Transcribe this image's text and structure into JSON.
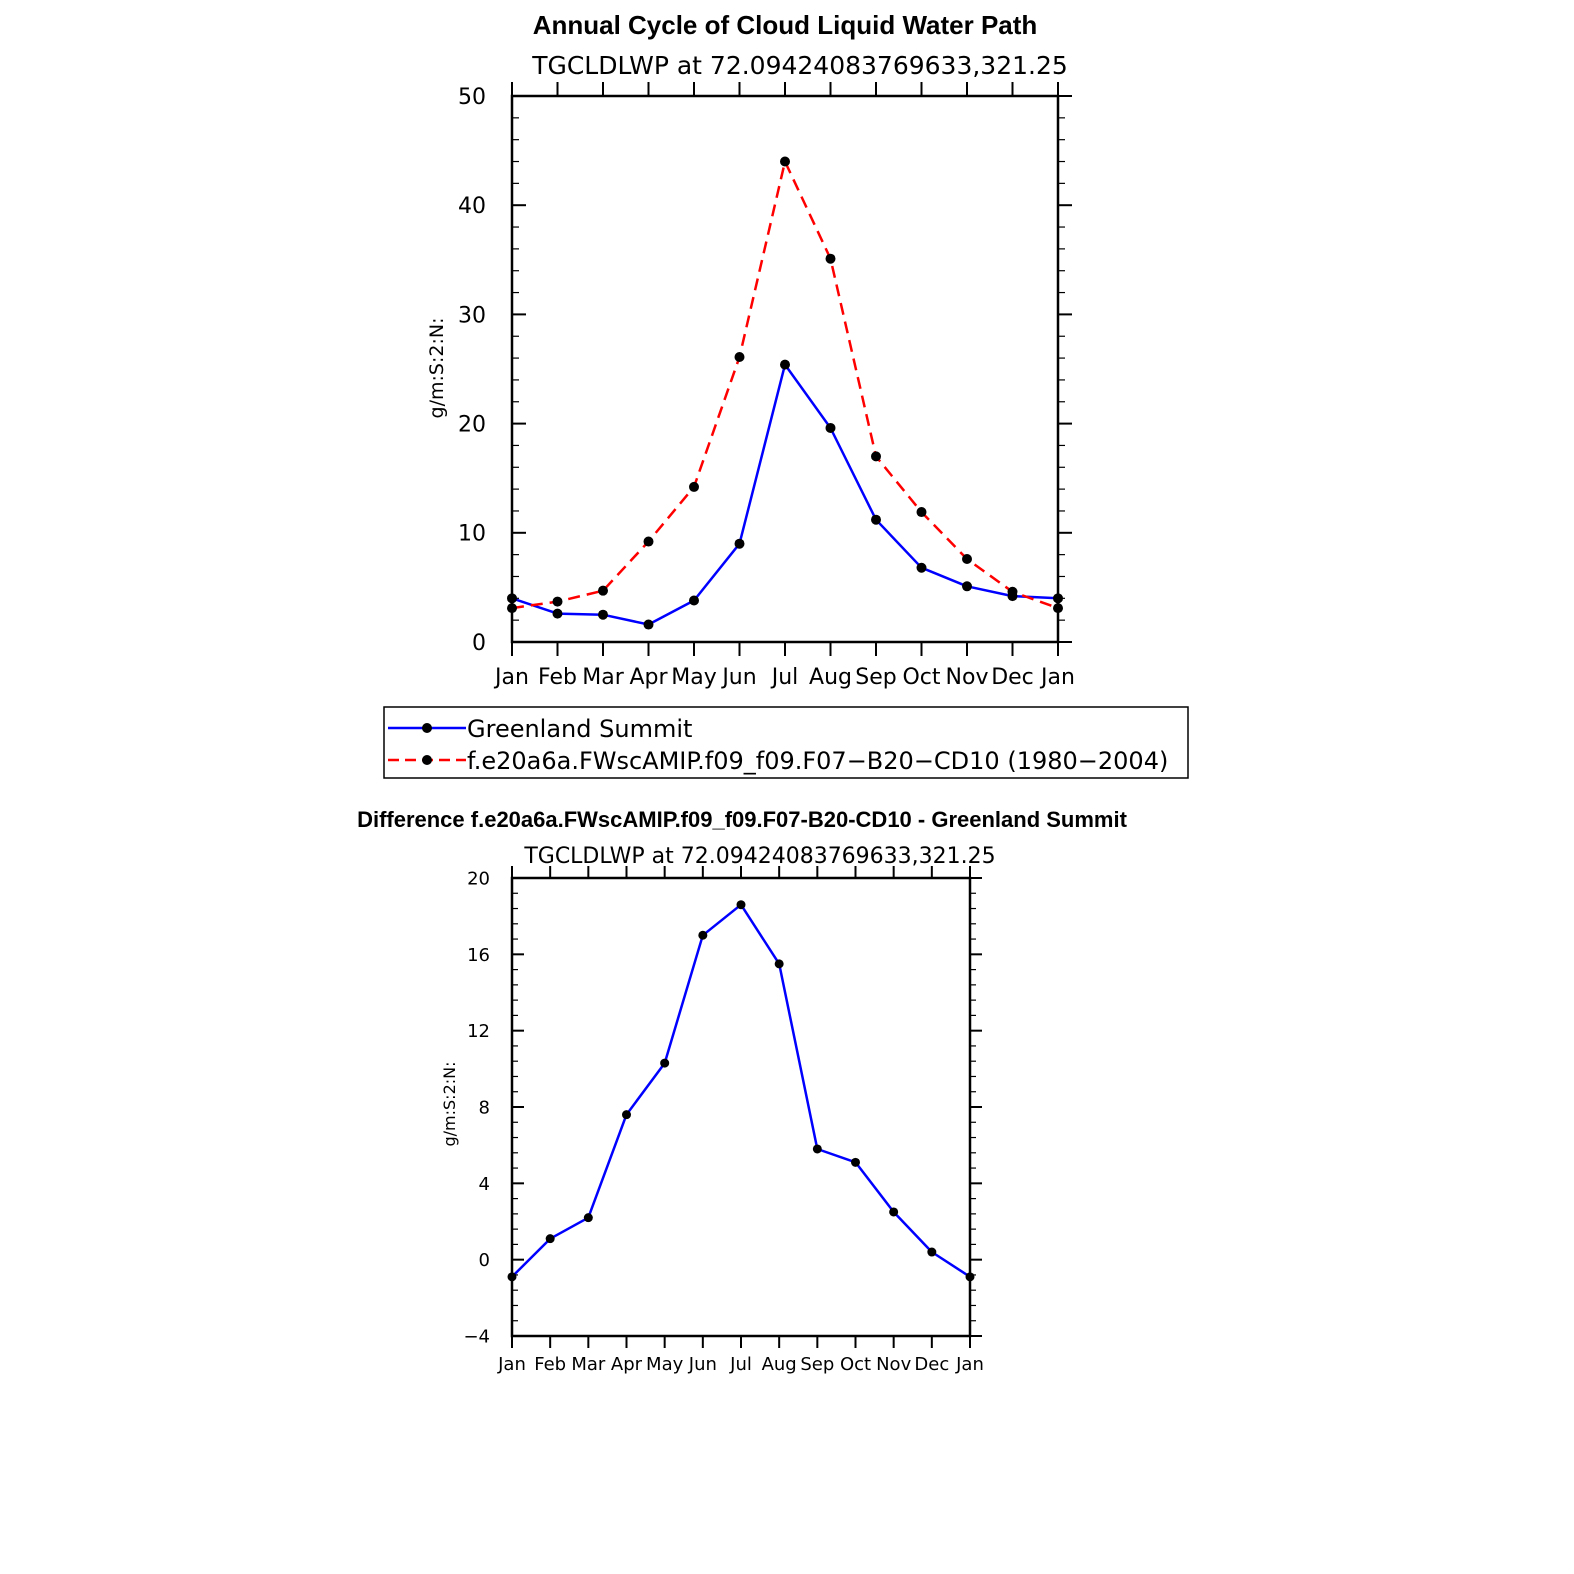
{
  "chart_data": [
    {
      "type": "line",
      "title": "Annual Cycle of Cloud Liquid Water Path",
      "subtitle": "TGCLDLWP at 72.09424083769633,321.25",
      "ylabel": "g/m:S:2:N:",
      "xlabel": "",
      "categories": [
        "Jan",
        "Feb",
        "Mar",
        "Apr",
        "May",
        "Jun",
        "Jul",
        "Aug",
        "Sep",
        "Oct",
        "Nov",
        "Dec",
        "Jan"
      ],
      "ylim": [
        0,
        50
      ],
      "yticks": [
        0,
        10,
        20,
        30,
        40,
        50
      ],
      "ytick_labels": [
        "0",
        "10",
        "20",
        "30",
        "40",
        "50"
      ],
      "legend_position": "bottom",
      "series": [
        {
          "name": "Greenland Summit",
          "color": "#0000ff",
          "dash": "solid",
          "values": [
            4.0,
            2.6,
            2.5,
            1.6,
            3.8,
            9.0,
            25.4,
            19.6,
            11.2,
            6.8,
            5.1,
            4.2,
            4.0
          ]
        },
        {
          "name": "f.e20a6a.FWscAMIP.f09_f09.F07−B20−CD10 (1980−2004)",
          "color": "#ff0000",
          "dash": "dashed",
          "values": [
            3.1,
            3.7,
            4.7,
            9.2,
            14.2,
            26.1,
            44.0,
            35.1,
            17.0,
            11.9,
            7.6,
            4.6,
            3.1
          ]
        }
      ]
    },
    {
      "type": "line",
      "title": "Difference f.e20a6a.FWscAMIP.f09_f09.F07-B20-CD10 - Greenland Summit",
      "subtitle": "TGCLDLWP at 72.09424083769633,321.25",
      "ylabel": "g/m:S:2:N:",
      "xlabel": "",
      "categories": [
        "Jan",
        "Feb",
        "Mar",
        "Apr",
        "May",
        "Jun",
        "Jul",
        "Aug",
        "Sep",
        "Oct",
        "Nov",
        "Dec",
        "Jan"
      ],
      "ylim": [
        -4,
        20
      ],
      "yticks": [
        -4,
        0,
        4,
        8,
        12,
        16,
        20
      ],
      "ytick_labels": [
        "−4",
        "0",
        "4",
        "8",
        "12",
        "16",
        "20"
      ],
      "series": [
        {
          "color": "#0000ff",
          "dash": "solid",
          "values": [
            -0.9,
            1.1,
            2.2,
            7.6,
            10.3,
            17.0,
            18.6,
            15.5,
            5.8,
            5.1,
            2.5,
            0.4,
            -0.9
          ]
        }
      ]
    }
  ]
}
